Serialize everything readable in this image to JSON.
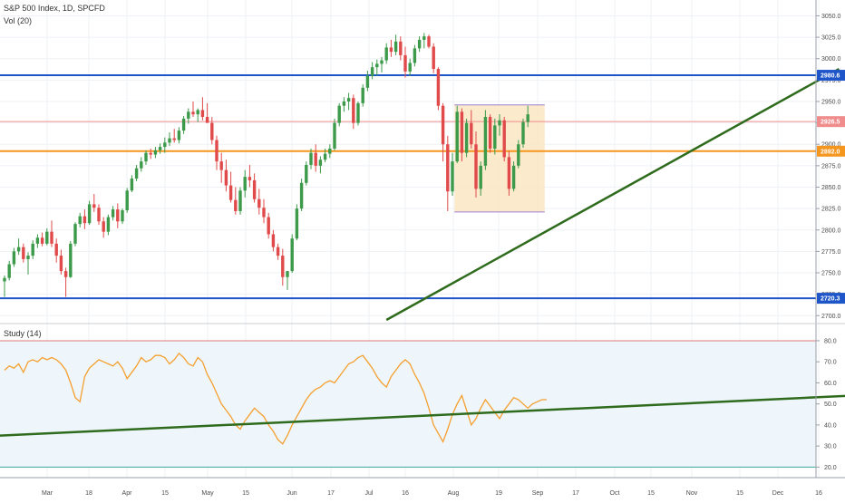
{
  "header": {
    "symbol": "S&P 500 Index, 1D, SPCFD",
    "volume_label": "Vol (20)",
    "study_label": "Study (14)"
  },
  "chart_data": [
    {
      "type": "candlestick",
      "title": "S&P 500 Index, 1D, SPCFD",
      "ylim": [
        2695,
        3060
      ],
      "y_ticks": [
        "3050.0",
        "3025.0",
        "3000.0",
        "2975.0",
        "2950.0",
        "2925.0",
        "2900.0",
        "2875.0",
        "2850.0",
        "2825.0",
        "2800.0",
        "2775.0",
        "2750.0",
        "2725.0",
        "2700.0"
      ],
      "x_ticks": [
        "Mar",
        "18",
        "Apr",
        "15",
        "May",
        "15",
        "Jun",
        "17",
        "Jul",
        "16",
        "Aug",
        "19",
        "Sep",
        "17",
        "Oct",
        "15",
        "Nov",
        "15",
        "Dec",
        "16"
      ],
      "candles": [
        [
          2740,
          2747,
          2722,
          2744
        ],
        [
          2744,
          2764,
          2741,
          2760
        ],
        [
          2760,
          2779,
          2757,
          2775
        ],
        [
          2775,
          2790,
          2771,
          2780
        ],
        [
          2780,
          2784,
          2762,
          2766
        ],
        [
          2766,
          2774,
          2748,
          2770
        ],
        [
          2770,
          2788,
          2766,
          2784
        ],
        [
          2784,
          2795,
          2779,
          2791
        ],
        [
          2791,
          2797,
          2781,
          2784
        ],
        [
          2784,
          2802,
          2782,
          2798
        ],
        [
          2798,
          2811,
          2780,
          2784
        ],
        [
          2784,
          2790,
          2762,
          2770
        ],
        [
          2770,
          2777,
          2748,
          2752
        ],
        [
          2752,
          2756,
          2722,
          2745
        ],
        [
          2745,
          2787,
          2744,
          2784
        ],
        [
          2784,
          2809,
          2781,
          2807
        ],
        [
          2807,
          2820,
          2803,
          2816
        ],
        [
          2816,
          2824,
          2801,
          2808
        ],
        [
          2808,
          2834,
          2806,
          2830
        ],
        [
          2830,
          2842,
          2821,
          2826
        ],
        [
          2826,
          2830,
          2806,
          2810
        ],
        [
          2810,
          2815,
          2791,
          2798
        ],
        [
          2798,
          2818,
          2794,
          2815
        ],
        [
          2815,
          2828,
          2811,
          2824
        ],
        [
          2824,
          2831,
          2802,
          2810
        ],
        [
          2810,
          2825,
          2807,
          2823
        ],
        [
          2823,
          2849,
          2820,
          2846
        ],
        [
          2846,
          2864,
          2844,
          2860
        ],
        [
          2860,
          2876,
          2857,
          2872
        ],
        [
          2872,
          2885,
          2868,
          2880
        ],
        [
          2880,
          2893,
          2876,
          2890
        ],
        [
          2890,
          2895,
          2883,
          2888
        ],
        [
          2888,
          2897,
          2884,
          2893
        ],
        [
          2893,
          2901,
          2889,
          2897
        ],
        [
          2897,
          2908,
          2890,
          2902
        ],
        [
          2902,
          2914,
          2898,
          2907
        ],
        [
          2907,
          2918,
          2902,
          2905
        ],
        [
          2905,
          2920,
          2901,
          2916
        ],
        [
          2916,
          2933,
          2912,
          2930
        ],
        [
          2930,
          2942,
          2924,
          2938
        ],
        [
          2938,
          2950,
          2932,
          2935
        ],
        [
          2935,
          2942,
          2926,
          2940
        ],
        [
          2940,
          2955,
          2928,
          2932
        ],
        [
          2932,
          2948,
          2927,
          2925
        ],
        [
          2925,
          2932,
          2900,
          2905
        ],
        [
          2905,
          2910,
          2870,
          2880
        ],
        [
          2880,
          2890,
          2855,
          2870
        ],
        [
          2870,
          2882,
          2845,
          2852
        ],
        [
          2852,
          2868,
          2832,
          2835
        ],
        [
          2835,
          2850,
          2818,
          2822
        ],
        [
          2822,
          2850,
          2818,
          2846
        ],
        [
          2846,
          2870,
          2838,
          2862
        ],
        [
          2862,
          2876,
          2850,
          2858
        ],
        [
          2858,
          2866,
          2832,
          2836
        ],
        [
          2836,
          2848,
          2818,
          2826
        ],
        [
          2826,
          2836,
          2808,
          2815
        ],
        [
          2815,
          2820,
          2790,
          2795
        ],
        [
          2795,
          2800,
          2775,
          2780
        ],
        [
          2780,
          2784,
          2765,
          2770
        ],
        [
          2770,
          2778,
          2735,
          2745
        ],
        [
          2745,
          2752,
          2730,
          2752
        ],
        [
          2752,
          2795,
          2750,
          2790
        ],
        [
          2790,
          2830,
          2788,
          2825
        ],
        [
          2825,
          2860,
          2822,
          2855
        ],
        [
          2855,
          2880,
          2852,
          2876
        ],
        [
          2876,
          2895,
          2871,
          2890
        ],
        [
          2890,
          2900,
          2868,
          2875
        ],
        [
          2875,
          2886,
          2866,
          2882
        ],
        [
          2882,
          2895,
          2879,
          2889
        ],
        [
          2889,
          2900,
          2884,
          2895
        ],
        [
          2895,
          2930,
          2893,
          2925
        ],
        [
          2925,
          2948,
          2921,
          2945
        ],
        [
          2945,
          2955,
          2938,
          2950
        ],
        [
          2950,
          2960,
          2940,
          2954
        ],
        [
          2954,
          2958,
          2918,
          2925
        ],
        [
          2925,
          2950,
          2922,
          2948
        ],
        [
          2948,
          2970,
          2944,
          2966
        ],
        [
          2966,
          2986,
          2962,
          2980
        ],
        [
          2980,
          2996,
          2976,
          2990
        ],
        [
          2990,
          2999,
          2980,
          2994
        ],
        [
          2994,
          3002,
          2984,
          2998
        ],
        [
          2998,
          3018,
          2994,
          3013
        ],
        [
          3013,
          3022,
          3002,
          3008
        ],
        [
          3008,
          3028,
          3004,
          3020
        ],
        [
          3020,
          3026,
          2998,
          3004
        ],
        [
          3004,
          3014,
          2978,
          2985
        ],
        [
          2985,
          3000,
          2980,
          2995
        ],
        [
          2995,
          3016,
          2991,
          3012
        ],
        [
          3012,
          3026,
          3008,
          3022
        ],
        [
          3022,
          3030,
          3012,
          3026
        ],
        [
          3026,
          3028,
          3012,
          3014
        ],
        [
          3014,
          3018,
          2983,
          2988
        ],
        [
          2988,
          2990,
          2940,
          2945
        ],
        [
          2945,
          2948,
          2880,
          2900
        ],
        [
          2900,
          2910,
          2822,
          2845
        ],
        [
          2845,
          2890,
          2840,
          2880
        ],
        [
          2880,
          2945,
          2878,
          2938
        ],
        [
          2938,
          2942,
          2880,
          2890
        ],
        [
          2890,
          2930,
          2885,
          2925
        ],
        [
          2925,
          2940,
          2895,
          2900
        ],
        [
          2900,
          2915,
          2838,
          2848
        ],
        [
          2848,
          2880,
          2840,
          2875
        ],
        [
          2875,
          2940,
          2870,
          2932
        ],
        [
          2932,
          2935,
          2890,
          2895
        ],
        [
          2895,
          2930,
          2888,
          2922
        ],
        [
          2922,
          2935,
          2910,
          2928
        ],
        [
          2928,
          2932,
          2880,
          2885
        ],
        [
          2885,
          2892,
          2840,
          2848
        ],
        [
          2848,
          2880,
          2845,
          2875
        ],
        [
          2875,
          2905,
          2872,
          2900
        ],
        [
          2900,
          2930,
          2896,
          2926
        ],
        [
          2926,
          2945,
          2920,
          2935
        ]
      ],
      "levels": [
        {
          "value": 2980.6,
          "label": "2980.6",
          "color": "#1e55c8"
        },
        {
          "value": 2926.5,
          "label": "2926.5",
          "color": "#f08c8c"
        },
        {
          "value": 2892.0,
          "label": "2892.0",
          "color": "#f5961e"
        },
        {
          "value": 2720.3,
          "label": "2720.3",
          "color": "#1e55c8"
        }
      ],
      "range_box": {
        "from_index": 96,
        "to_index": 114,
        "top": 2946,
        "bottom": 2821,
        "color": "#fbe6c4"
      },
      "trendline": {
        "from_index": 81,
        "from_value": 2695,
        "to_index": 177,
        "to_value": 2988,
        "color": "#2e6b1c"
      }
    },
    {
      "type": "line",
      "title": "Study (14)",
      "ylim": [
        15,
        86
      ],
      "y_ticks": [
        "80.0",
        "70.0",
        "60.0",
        "50.0",
        "40.0",
        "30.0",
        "20.0"
      ],
      "band": [
        20,
        80
      ],
      "series": [
        {
          "color": "#f5a030",
          "values": [
            66,
            68,
            67,
            69,
            65,
            70,
            71,
            70,
            72,
            71,
            72,
            71,
            69,
            66,
            60,
            53,
            51,
            63,
            67,
            69,
            71,
            70,
            69,
            68,
            70,
            67,
            62,
            65,
            68,
            72,
            70,
            71,
            73,
            73,
            72,
            69,
            71,
            74,
            72,
            69,
            68,
            72,
            70,
            64,
            60,
            55,
            50,
            47,
            44,
            40,
            38,
            42,
            45,
            48,
            46,
            44,
            40,
            37,
            33,
            31,
            35,
            40,
            44,
            48,
            52,
            55,
            57,
            58,
            60,
            61,
            60,
            63,
            66,
            69,
            70,
            72,
            73,
            70,
            67,
            63,
            60,
            58,
            63,
            66,
            69,
            71,
            69,
            64,
            60,
            55,
            48,
            40,
            36,
            32,
            38,
            45,
            50,
            54,
            47,
            40,
            43,
            48,
            52,
            49,
            46,
            43,
            47,
            50,
            53,
            52,
            50,
            48,
            50,
            51,
            52,
            52
          ]
        },
        {
          "name": "",
          "color": "#2e6b1c",
          "type": "trend",
          "from_index": -10,
          "from_value": 34,
          "to_index": 190,
          "to_value": 55
        }
      ]
    }
  ]
}
